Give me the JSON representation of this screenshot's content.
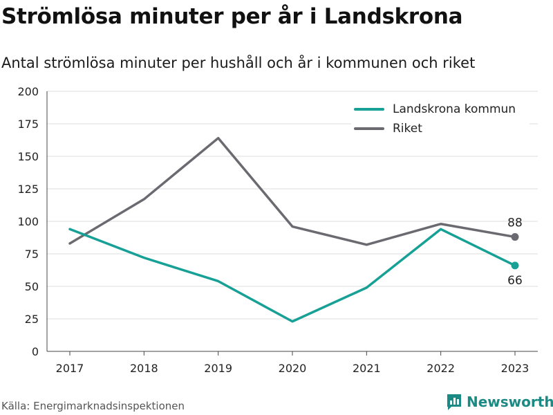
{
  "header": {
    "title": "Strömlösa minuter per år i Landskrona",
    "subtitle": "Antal strömlösa minuter per hushåll och år i kommunen och riket"
  },
  "footer": {
    "source": "Källa: Energimarknadsinspektionen",
    "brand": "Newsworthy"
  },
  "colors": {
    "landskrona": "#16a096",
    "riket": "#6b6a70",
    "grid": "#dcdcdc",
    "axis": "#444444",
    "brand": "#1b8a84"
  },
  "icons": {
    "brand_logo": "newsworthy-logo-icon"
  },
  "chart_data": {
    "type": "line",
    "title": "Strömlösa minuter per år i Landskrona",
    "subtitle": "Antal strömlösa minuter per hushåll och år i kommunen och riket",
    "xlabel": "",
    "ylabel": "",
    "categories": [
      "2017",
      "2018",
      "2019",
      "2020",
      "2021",
      "2022",
      "2023"
    ],
    "ylim": [
      0,
      200
    ],
    "yticks": [
      "0",
      "25",
      "50",
      "75",
      "100",
      "125",
      "150",
      "175",
      "200"
    ],
    "grid": true,
    "legend": "top-right",
    "series": [
      {
        "name": "Landskrona kommun",
        "color": "#16a096",
        "values": [
          94,
          72,
          54,
          23,
          49,
          94,
          66
        ],
        "end_label": "66"
      },
      {
        "name": "Riket",
        "color": "#6b6a70",
        "values": [
          83,
          117,
          164,
          96,
          82,
          98,
          88
        ],
        "end_label": "88"
      }
    ]
  }
}
